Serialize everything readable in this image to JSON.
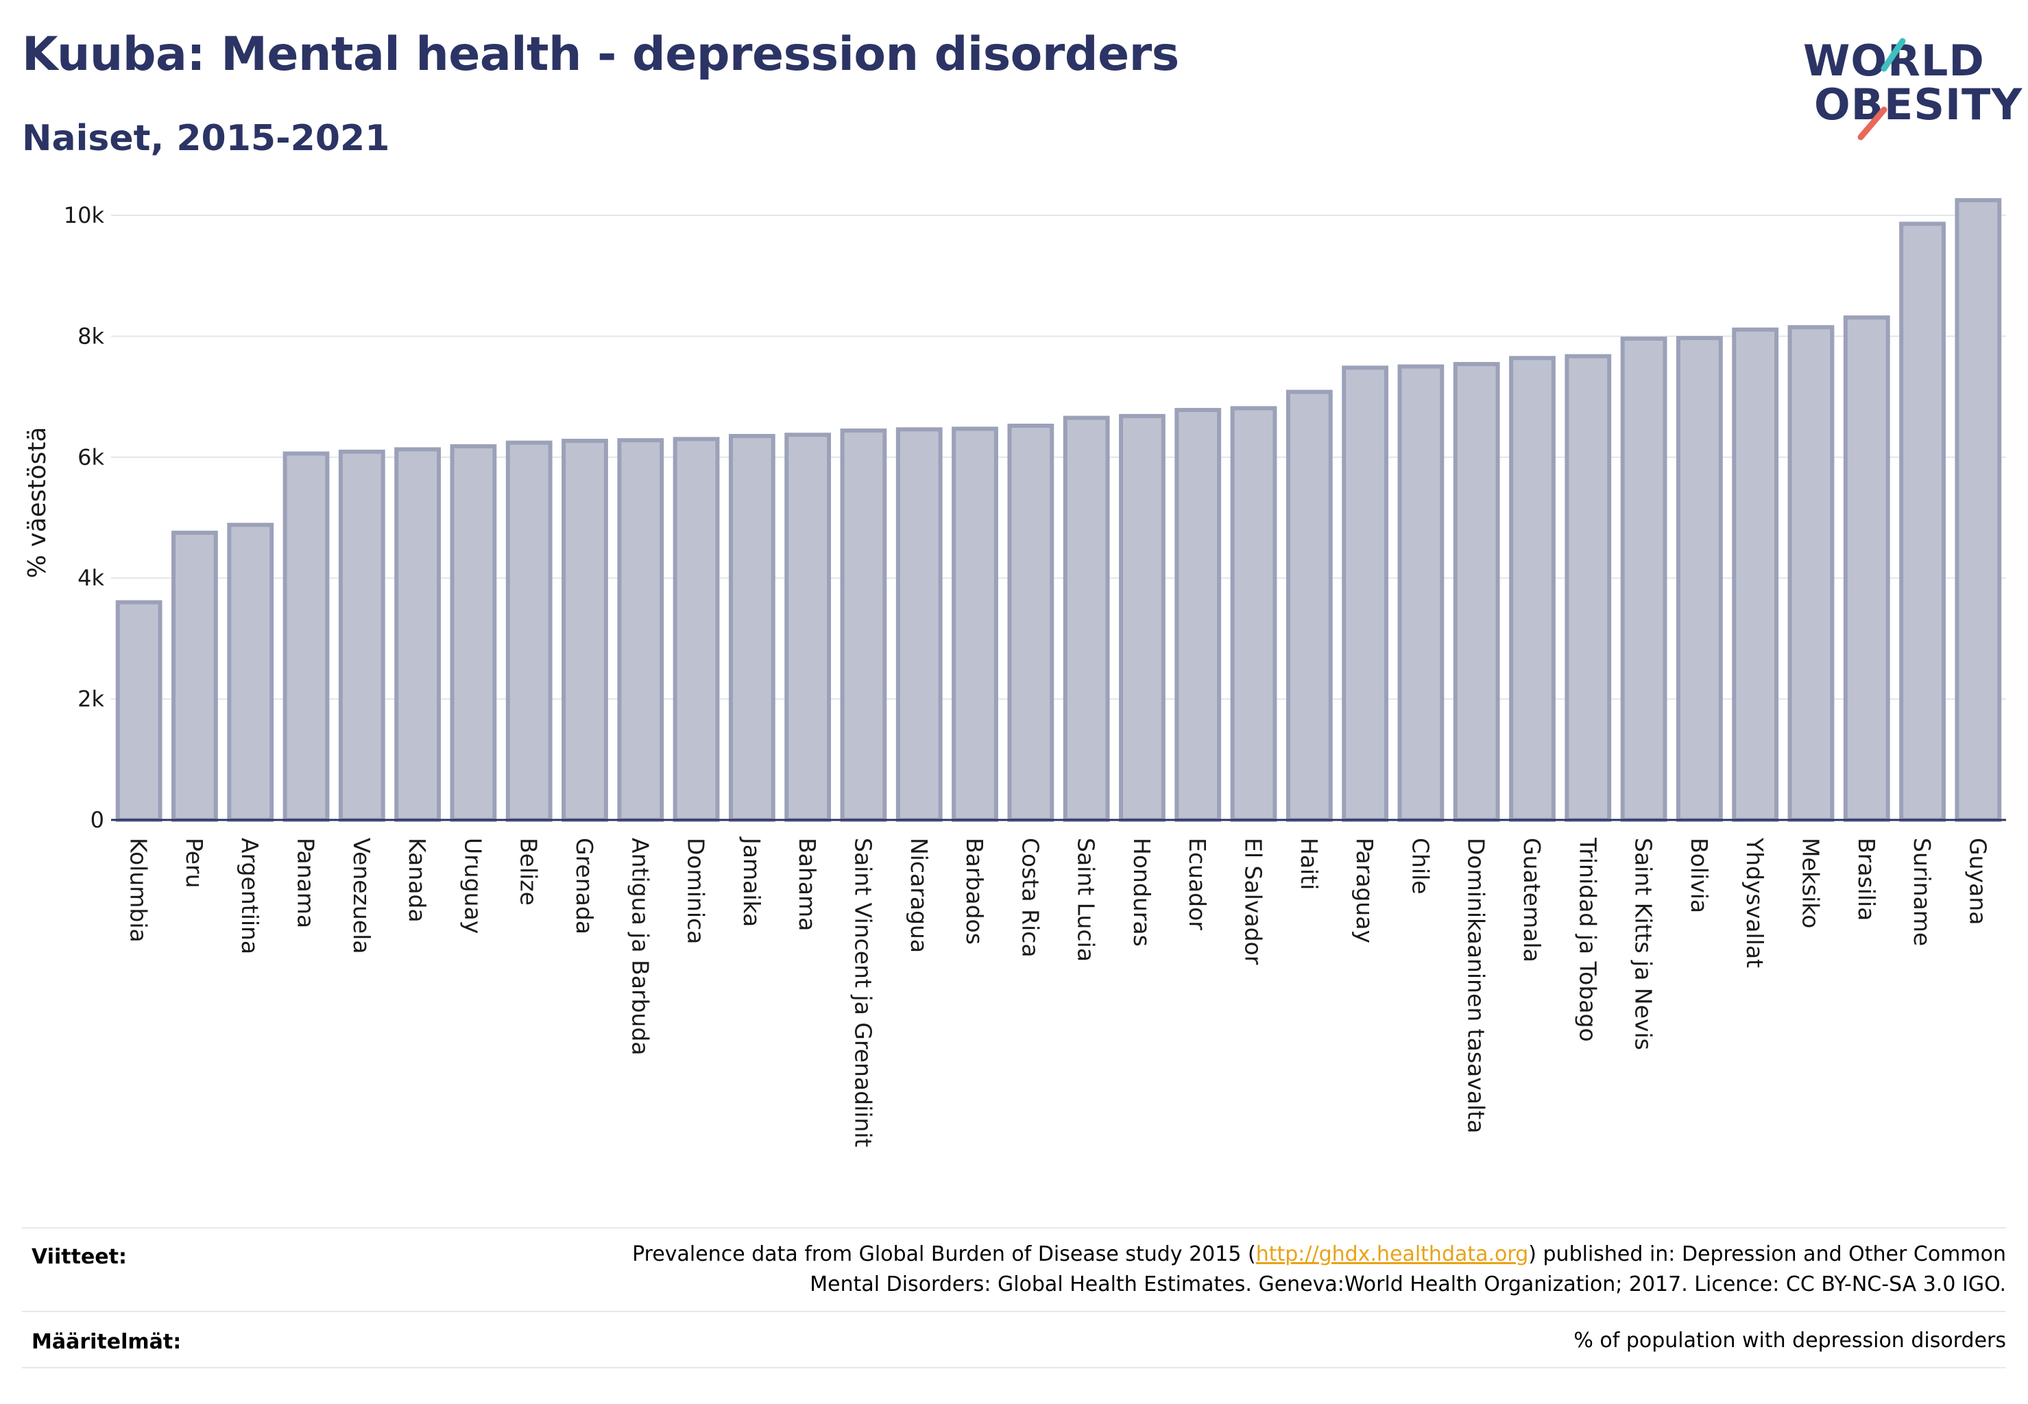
{
  "header": {
    "title": "Kuuba: Mental health - depression disorders",
    "subtitle": "Naiset, 2015-2021"
  },
  "logo": {
    "line1": "WORLD",
    "line2": "OBESITY",
    "accent_colors": [
      "#3fbfbf",
      "#e8685a"
    ]
  },
  "chart_data": {
    "type": "bar",
    "ylabel": "% väestöstä",
    "ylim": [
      0,
      10500
    ],
    "yticks": [
      0,
      2000,
      4000,
      6000,
      8000,
      10000
    ],
    "ytick_labels": [
      "0",
      "2k",
      "4k",
      "6k",
      "8k",
      "10k"
    ],
    "grid": true,
    "bar_color": "#bec2d0",
    "bar_edge_color": "#9ba1b8",
    "categories": [
      "Kolumbia",
      "Peru",
      "Argentiina",
      "Panama",
      "Venezuela",
      "Kanada",
      "Uruguay",
      "Belize",
      "Grenada",
      "Antigua ja Barbuda",
      "Dominica",
      "Jamaika",
      "Bahama",
      "Saint Vincent ja Grenadiinit",
      "Nicaragua",
      "Barbados",
      "Costa Rica",
      "Saint Lucia",
      "Honduras",
      "Ecuador",
      "El Salvador",
      "Haiti",
      "Paraguay",
      "Chile",
      "Dominikaaninen tasavalta",
      "Guatemala",
      "Trinidad ja Tobago",
      "Saint Kitts ja Nevis",
      "Bolivia",
      "Yhdysvallat",
      "Meksiko",
      "Brasilia",
      "Suriname",
      "Guyana"
    ],
    "values": [
      3600,
      4750,
      4880,
      6060,
      6090,
      6130,
      6180,
      6240,
      6270,
      6280,
      6300,
      6350,
      6370,
      6440,
      6460,
      6470,
      6520,
      6650,
      6680,
      6780,
      6810,
      7080,
      7480,
      7500,
      7540,
      7640,
      7670,
      7960,
      7970,
      8110,
      8150,
      8310,
      9860,
      10250
    ]
  },
  "footer": {
    "refs_label": "Viitteet:",
    "refs_text_before": "Prevalence data from Global Burden of Disease study 2015 (",
    "refs_link": "http://ghdx.healthdata.org",
    "refs_text_after": ") published in: Depression and Other Common",
    "refs_line2": "Mental Disorders: Global Health Estimates. Geneva:World Health Organization; 2017. Licence: CC BY-NC-SA 3.0 IGO.",
    "defs_label": "Määritelmät:",
    "defs_text": "% of population with depression disorders"
  }
}
